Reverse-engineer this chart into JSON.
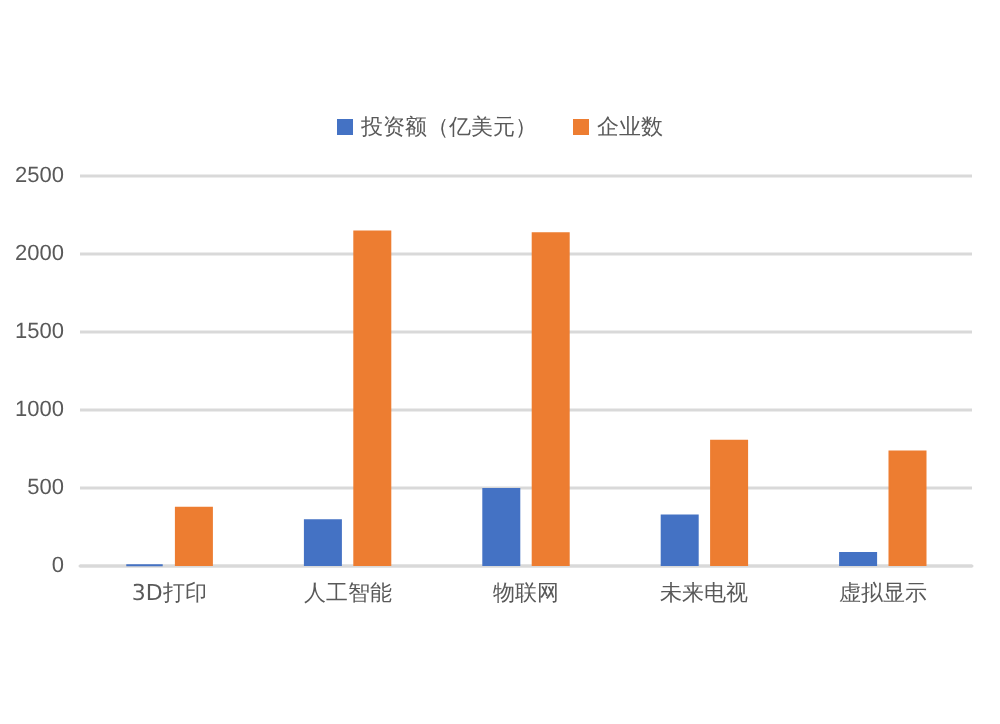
{
  "chart_data": {
    "type": "bar",
    "categories": [
      "3D打印",
      "人工智能",
      "物联网",
      "未来电视",
      "虚拟显示"
    ],
    "series": [
      {
        "name": "投资额（亿美元）",
        "color": "#4472c4",
        "values": [
          10,
          300,
          500,
          330,
          90
        ]
      },
      {
        "name": "企业数",
        "color": "#ed7d31",
        "values": [
          380,
          2150,
          2140,
          810,
          740
        ]
      }
    ],
    "ylim": [
      0,
      2500
    ],
    "yticks": [
      0,
      500,
      1000,
      1500,
      2000,
      2500
    ],
    "grid": "y",
    "legend": "top"
  }
}
